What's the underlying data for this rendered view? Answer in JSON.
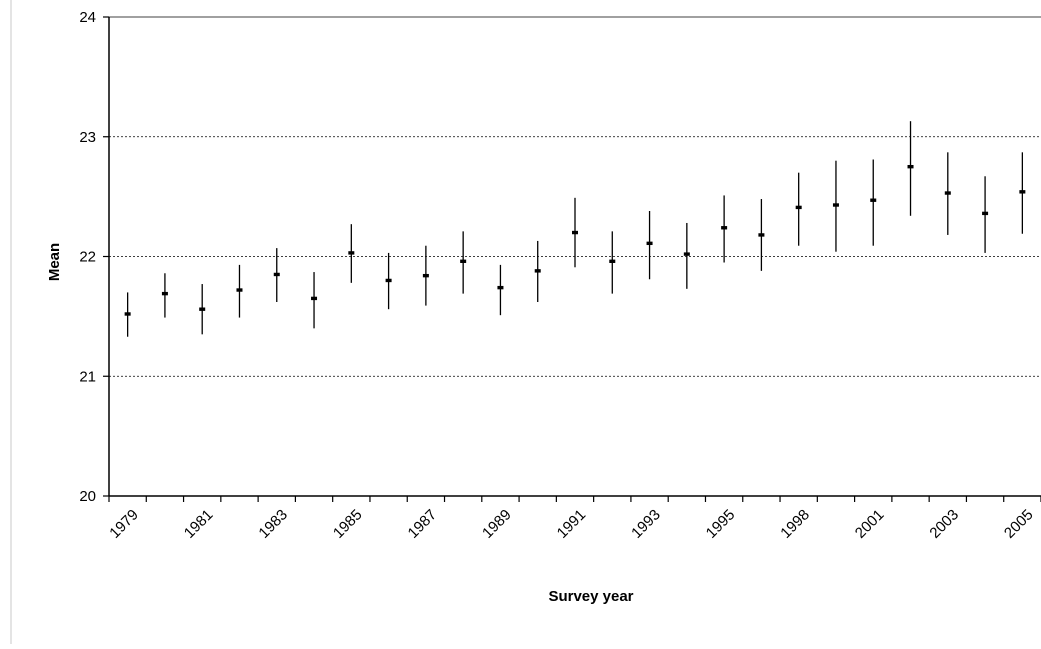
{
  "chart_data": {
    "type": "scatter",
    "title": "",
    "xlabel": "Survey year",
    "ylabel": "Mean",
    "ylim": [
      20,
      24
    ],
    "yticks": [
      20,
      21,
      22,
      23,
      24
    ],
    "grid": "horizontal dashed",
    "legend": "none",
    "x_tick_labels": [
      "1979",
      "1981",
      "1983",
      "1985",
      "1987",
      "1989",
      "1991",
      "1993",
      "1995",
      "1998",
      "2001",
      "2003",
      "2005"
    ],
    "series": [
      {
        "points": [
          {
            "mean": 21.52,
            "lower": 21.33,
            "upper": 21.7
          },
          {
            "mean": 21.69,
            "lower": 21.49,
            "upper": 21.86
          },
          {
            "mean": 21.56,
            "lower": 21.35,
            "upper": 21.77
          },
          {
            "mean": 21.72,
            "lower": 21.49,
            "upper": 21.93
          },
          {
            "mean": 21.85,
            "lower": 21.62,
            "upper": 22.07
          },
          {
            "mean": 21.65,
            "lower": 21.4,
            "upper": 21.87
          },
          {
            "mean": 22.03,
            "lower": 21.78,
            "upper": 22.27
          },
          {
            "mean": 21.8,
            "lower": 21.56,
            "upper": 22.03
          },
          {
            "mean": 21.84,
            "lower": 21.59,
            "upper": 22.09
          },
          {
            "mean": 21.96,
            "lower": 21.69,
            "upper": 22.21
          },
          {
            "mean": 21.74,
            "lower": 21.51,
            "upper": 21.93
          },
          {
            "mean": 21.88,
            "lower": 21.62,
            "upper": 22.13
          },
          {
            "mean": 22.2,
            "lower": 21.91,
            "upper": 22.49
          },
          {
            "mean": 21.96,
            "lower": 21.69,
            "upper": 22.21
          },
          {
            "mean": 22.11,
            "lower": 21.81,
            "upper": 22.38
          },
          {
            "mean": 22.02,
            "lower": 21.73,
            "upper": 22.28
          },
          {
            "mean": 22.24,
            "lower": 21.95,
            "upper": 22.51
          },
          {
            "mean": 22.18,
            "lower": 21.88,
            "upper": 22.48
          },
          {
            "mean": 22.41,
            "lower": 22.09,
            "upper": 22.7
          },
          {
            "mean": 22.43,
            "lower": 22.04,
            "upper": 22.8
          },
          {
            "mean": 22.47,
            "lower": 22.09,
            "upper": 22.81
          },
          {
            "mean": 22.75,
            "lower": 22.34,
            "upper": 23.13
          },
          {
            "mean": 22.53,
            "lower": 22.18,
            "upper": 22.87
          },
          {
            "mean": 22.36,
            "lower": 22.03,
            "upper": 22.67
          },
          {
            "mean": 22.54,
            "lower": 22.19,
            "upper": 22.87
          }
        ]
      }
    ],
    "colors": {
      "line": "#000000",
      "grid": "#000000",
      "frame": "#b0b0b0"
    }
  }
}
